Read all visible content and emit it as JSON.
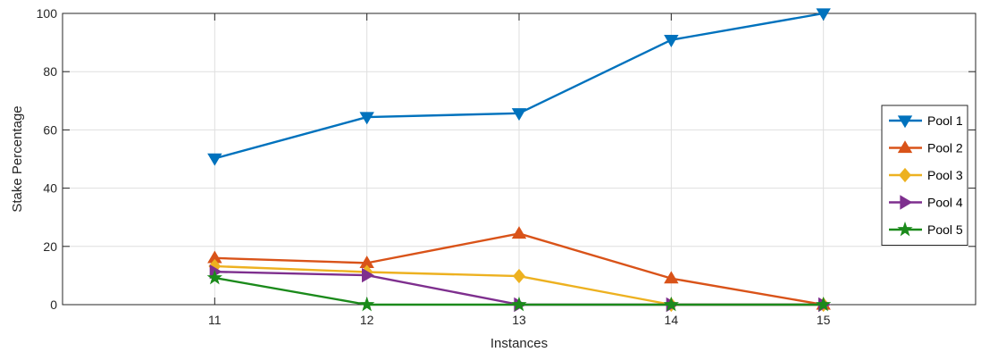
{
  "chart_data": {
    "type": "line",
    "title": "",
    "xlabel": "Instances",
    "ylabel": "Stake Percentage",
    "x": [
      11,
      12,
      13,
      14,
      15
    ],
    "xlim": [
      10,
      16
    ],
    "ylim": [
      0,
      100
    ],
    "xticks": [
      11,
      12,
      13,
      14,
      15
    ],
    "yticks": [
      0,
      20,
      40,
      60,
      80,
      100
    ],
    "grid": true,
    "legend_position": "right",
    "series": [
      {
        "name": "Pool 1",
        "color": "#0072BD",
        "marker": "triangle-down",
        "values": [
          50.2,
          64.4,
          65.7,
          90.9,
          100
        ]
      },
      {
        "name": "Pool 2",
        "color": "#D95319",
        "marker": "triangle-up",
        "values": [
          16.0,
          14.3,
          24.4,
          9.0,
          0
        ]
      },
      {
        "name": "Pool 3",
        "color": "#EDB120",
        "marker": "diamond",
        "values": [
          13.2,
          11.2,
          9.8,
          0,
          0
        ]
      },
      {
        "name": "Pool 4",
        "color": "#7E2F8E",
        "marker": "triangle-right",
        "values": [
          11.3,
          10.1,
          0,
          0,
          0
        ]
      },
      {
        "name": "Pool 5",
        "color": "#1B8A1B",
        "marker": "star",
        "values": [
          9.2,
          0,
          0,
          0,
          0
        ]
      }
    ]
  }
}
